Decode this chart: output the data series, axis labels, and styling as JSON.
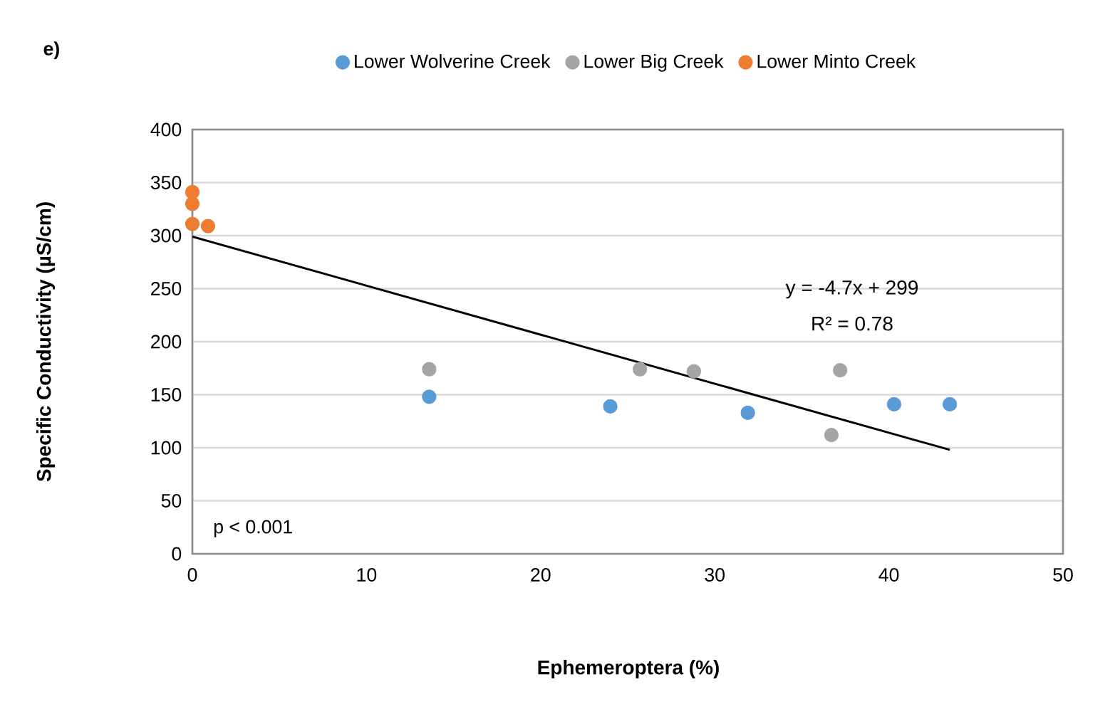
{
  "chart_data": {
    "type": "scatter",
    "xlabel": "Ephemeroptera (%)",
    "ylabel": "Specific Conductivity (µS/cm)",
    "annotations": [
      "e)",
      "p < 0.001",
      "y = -4.7x + 299",
      "R² = 0.78"
    ],
    "series": [
      {
        "name": "Lower Wolverine Creek",
        "color": "#5b9bd5",
        "x": [
          13.6,
          24.0,
          31.9,
          40.3,
          43.5
        ],
        "values": [
          148,
          139,
          133,
          141,
          141
        ]
      },
      {
        "name": "Lower Big Creek",
        "color": "#a5a5a5",
        "x": [
          13.6,
          25.7,
          28.8,
          36.7,
          37.2
        ],
        "values": [
          174,
          174,
          172,
          112,
          173
        ]
      },
      {
        "name": "Lower Minto Creek",
        "color": "#ed7d31",
        "x": [
          0,
          0,
          0,
          0.9
        ],
        "values": [
          341,
          330,
          311,
          309
        ]
      },
      {
        "type": "line",
        "color": "#000000",
        "x": [
          0,
          43.5
        ],
        "values": [
          299,
          98
        ]
      }
    ],
    "xlim": [
      0,
      50
    ],
    "ylim": [
      0,
      400
    ],
    "xticks": [
      0,
      10,
      20,
      30,
      40,
      50
    ],
    "yticks": [
      0,
      50,
      100,
      150,
      200,
      250,
      300,
      350,
      400
    ],
    "grid": "y",
    "legend": "top"
  }
}
